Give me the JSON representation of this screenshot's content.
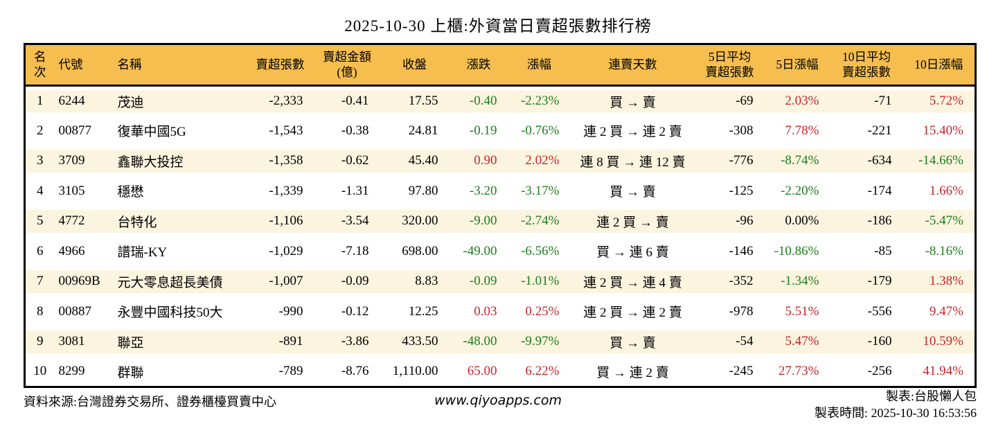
{
  "title": "2025-10-30 上櫃:外資當日賣超張數排行榜",
  "chart_data": {
    "type": "table",
    "title": "2025-10-30 上櫃:外資當日賣超張數排行榜",
    "columns": [
      {
        "key": "rank",
        "label": "名次",
        "align": "center",
        "colored": false
      },
      {
        "key": "code",
        "label": "代號",
        "align": "left",
        "colored": false
      },
      {
        "key": "name",
        "label": "名稱",
        "align": "left",
        "colored": false
      },
      {
        "key": "sell_vol",
        "label": "賣超張數",
        "align": "right",
        "colored": false
      },
      {
        "key": "sell_amt",
        "label": "賣超金額\n(億)",
        "align": "right",
        "colored": false
      },
      {
        "key": "close",
        "label": "收盤",
        "align": "right",
        "colored": false
      },
      {
        "key": "change",
        "label": "漲跌",
        "align": "right",
        "colored": true
      },
      {
        "key": "change_pct",
        "label": "漲幅",
        "align": "right",
        "colored": true
      },
      {
        "key": "streak",
        "label": "連賣天數",
        "align": "center",
        "colored": false
      },
      {
        "key": "avg5",
        "label": "5日平均\n賣超張數",
        "align": "right",
        "colored": false
      },
      {
        "key": "pct5",
        "label": "5日漲幅",
        "align": "right",
        "colored": true
      },
      {
        "key": "avg10",
        "label": "10日平均\n賣超張數",
        "align": "right",
        "colored": false
      },
      {
        "key": "pct10",
        "label": "10日漲幅",
        "align": "right",
        "colored": true
      }
    ],
    "rows": [
      {
        "rank": "1",
        "code": "6244",
        "name": "茂迪",
        "sell_vol": "-2,333",
        "sell_amt": "-0.41",
        "close": "17.55",
        "change": "-0.40",
        "change_pct": "-2.23%",
        "streak": "買 → 賣",
        "avg5": "-69",
        "pct5": "2.03%",
        "avg10": "-71",
        "pct10": "5.72%"
      },
      {
        "rank": "2",
        "code": "00877",
        "name": "復華中國5G",
        "sell_vol": "-1,543",
        "sell_amt": "-0.38",
        "close": "24.81",
        "change": "-0.19",
        "change_pct": "-0.76%",
        "streak": "連 2 買 → 連 2 賣",
        "avg5": "-308",
        "pct5": "7.78%",
        "avg10": "-221",
        "pct10": "15.40%"
      },
      {
        "rank": "3",
        "code": "3709",
        "name": "鑫聯大投控",
        "sell_vol": "-1,358",
        "sell_amt": "-0.62",
        "close": "45.40",
        "change": "0.90",
        "change_pct": "2.02%",
        "streak": "連 8 買 → 連 12 賣",
        "avg5": "-776",
        "pct5": "-8.74%",
        "avg10": "-634",
        "pct10": "-14.66%"
      },
      {
        "rank": "4",
        "code": "3105",
        "name": "穩懋",
        "sell_vol": "-1,339",
        "sell_amt": "-1.31",
        "close": "97.80",
        "change": "-3.20",
        "change_pct": "-3.17%",
        "streak": "買 → 賣",
        "avg5": "-125",
        "pct5": "-2.20%",
        "avg10": "-174",
        "pct10": "1.66%"
      },
      {
        "rank": "5",
        "code": "4772",
        "name": "台特化",
        "sell_vol": "-1,106",
        "sell_amt": "-3.54",
        "close": "320.00",
        "change": "-9.00",
        "change_pct": "-2.74%",
        "streak": "連 2 買 → 賣",
        "avg5": "-96",
        "pct5": "0.00%",
        "avg10": "-186",
        "pct10": "-5.47%"
      },
      {
        "rank": "6",
        "code": "4966",
        "name": "譜瑞-KY",
        "sell_vol": "-1,029",
        "sell_amt": "-7.18",
        "close": "698.00",
        "change": "-49.00",
        "change_pct": "-6.56%",
        "streak": "買 → 連 6 賣",
        "avg5": "-146",
        "pct5": "-10.86%",
        "avg10": "-85",
        "pct10": "-8.16%"
      },
      {
        "rank": "7",
        "code": "00969B",
        "name": "元大零息超長美債",
        "sell_vol": "-1,007",
        "sell_amt": "-0.09",
        "close": "8.83",
        "change": "-0.09",
        "change_pct": "-1.01%",
        "streak": "連 2 買 → 連 4 賣",
        "avg5": "-352",
        "pct5": "-1.34%",
        "avg10": "-179",
        "pct10": "1.38%"
      },
      {
        "rank": "8",
        "code": "00887",
        "name": "永豐中國科技50大",
        "sell_vol": "-990",
        "sell_amt": "-0.12",
        "close": "12.25",
        "change": "0.03",
        "change_pct": "0.25%",
        "streak": "連 2 買 → 連 2 賣",
        "avg5": "-978",
        "pct5": "5.51%",
        "avg10": "-556",
        "pct10": "9.47%"
      },
      {
        "rank": "9",
        "code": "3081",
        "name": "聯亞",
        "sell_vol": "-891",
        "sell_amt": "-3.86",
        "close": "433.50",
        "change": "-48.00",
        "change_pct": "-9.97%",
        "streak": "買 → 賣",
        "avg5": "-54",
        "pct5": "5.47%",
        "avg10": "-160",
        "pct10": "10.59%"
      },
      {
        "rank": "10",
        "code": "8299",
        "name": "群聯",
        "sell_vol": "-789",
        "sell_amt": "-8.76",
        "close": "1,110.00",
        "change": "65.00",
        "change_pct": "6.22%",
        "streak": "買 → 連 2 賣",
        "avg5": "-245",
        "pct5": "27.73%",
        "avg10": "-256",
        "pct10": "41.94%"
      }
    ]
  },
  "footer": {
    "source": "資料來源:台灣證券交易所、證券櫃檯買賣中心",
    "website": "www.qiyoapps.com",
    "maker": "製表:台股懶人包",
    "made_time": "製表時間: 2025-10-30 16:53:56"
  },
  "colors": {
    "up": "#c9242b",
    "down": "#1e7d1e",
    "flat": "#000000",
    "header_bg": "#f6be4e",
    "stripe": "#fbf4df",
    "border": "#000000"
  }
}
